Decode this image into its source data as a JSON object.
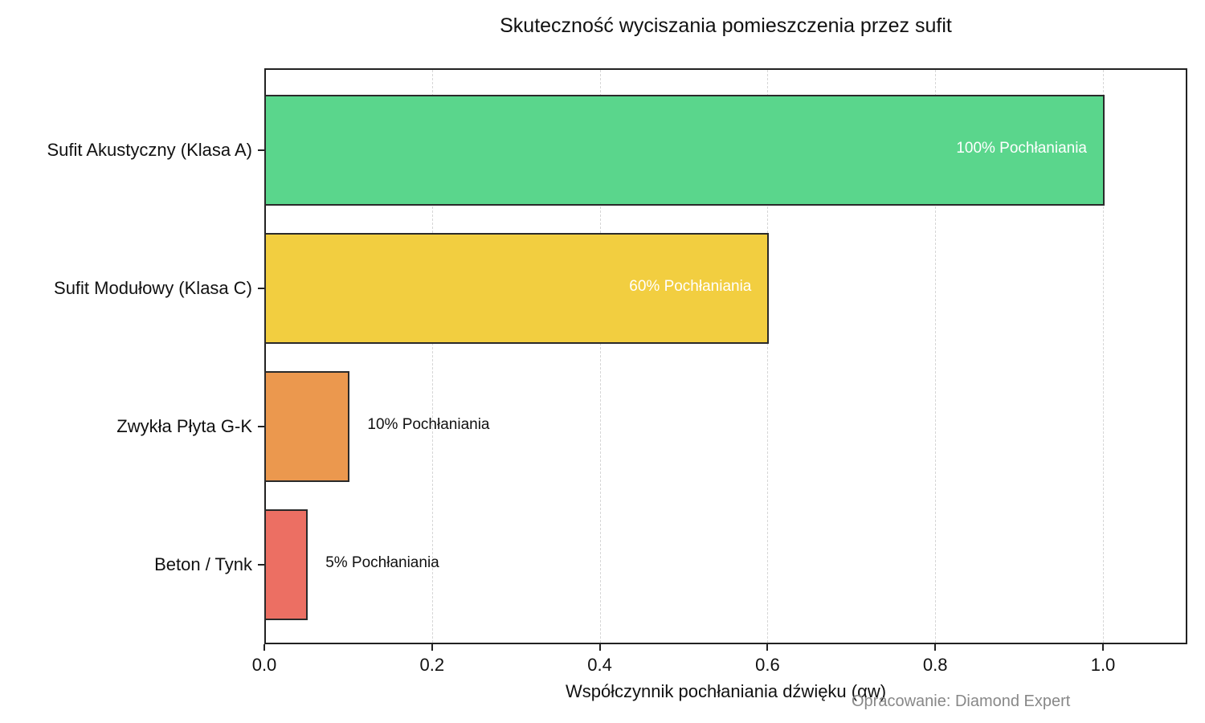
{
  "chart_data": {
    "type": "bar",
    "orientation": "horizontal",
    "title": "Skuteczność wyciszania pomieszczenia przez sufit",
    "xlabel": "Współczynnik pochłaniania dźwięku (αw)",
    "ylabel": "",
    "categories": [
      "Sufit Akustyczny (Klasa A)",
      "Sufit Modułowy (Klasa C)",
      "Zwykła Płyta G-K",
      "Beton / Tynk"
    ],
    "values": [
      1.0,
      0.6,
      0.1,
      0.05
    ],
    "bar_labels": [
      "100% Pochłaniania",
      "60% Pochłaniania",
      "10% Pochłaniania",
      "5% Pochłaniania"
    ],
    "colors": [
      "#5ad68c",
      "#f2ce40",
      "#eb984e",
      "#ec6f63"
    ],
    "xlim": [
      0,
      1.1
    ],
    "xticks": [
      "0.0",
      "0.2",
      "0.4",
      "0.6",
      "0.8",
      "1.0"
    ],
    "grid": {
      "x": true,
      "y": false,
      "style": "dashed"
    },
    "legend": null,
    "annotation": "Opracowanie: Diamond Expert"
  }
}
